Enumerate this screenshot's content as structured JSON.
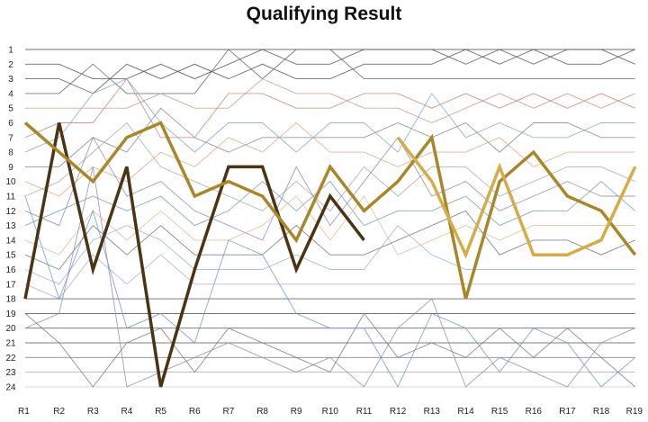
{
  "chart_data": {
    "type": "line",
    "title": "Qualifying Result",
    "xlabel": "",
    "ylabel": "",
    "x": [
      "R1",
      "R2",
      "R3",
      "R4",
      "R5",
      "R6",
      "R7",
      "R8",
      "R9",
      "R10",
      "R11",
      "R12",
      "R13",
      "R14",
      "R15",
      "R16",
      "R17",
      "R18",
      "R19"
    ],
    "y_ticks": [
      "1",
      "2",
      "3",
      "4",
      "5",
      "6",
      "7",
      "8",
      "9",
      "10",
      "11",
      "12",
      "13",
      "14",
      "15",
      "16",
      "17",
      "18",
      "19",
      "20",
      "21",
      "22",
      "23",
      "24"
    ],
    "ylim": [
      1,
      24
    ],
    "y_inverted": true,
    "grid": false,
    "legend": "none",
    "highlight_series": [
      {
        "color": "#4a3414",
        "width": 3.5,
        "values": [
          18,
          6,
          16,
          9,
          24,
          16,
          9,
          9,
          16,
          11,
          14,
          null,
          null,
          null,
          null,
          null,
          null,
          null,
          null
        ]
      },
      {
        "color": "#a8862a",
        "width": 3.5,
        "values": [
          6,
          8,
          10,
          7,
          6,
          11,
          10,
          11,
          14,
          9,
          12,
          10,
          7,
          18,
          10,
          8,
          11,
          12,
          15
        ]
      },
      {
        "color": "#d4ac48",
        "width": 3.5,
        "values": [
          null,
          null,
          null,
          null,
          null,
          null,
          null,
          null,
          null,
          null,
          null,
          7,
          10,
          15,
          9,
          15,
          15,
          14,
          9
        ]
      }
    ],
    "background_series": [
      {
        "color": "#555555",
        "values": [
          1,
          1,
          1,
          1,
          1,
          1,
          1,
          1,
          1,
          1,
          1,
          1,
          1,
          1,
          1,
          1,
          1,
          1,
          1
        ]
      },
      {
        "color": "#555555",
        "values": [
          2,
          2,
          3,
          3,
          2,
          3,
          2,
          1,
          2,
          2,
          1,
          1,
          1,
          2,
          1,
          2,
          1,
          1,
          2
        ]
      },
      {
        "color": "#555555",
        "values": [
          3,
          3,
          4,
          2,
          3,
          2,
          3,
          2,
          3,
          3,
          2,
          2,
          2,
          1,
          2,
          1,
          2,
          2,
          1
        ]
      },
      {
        "color": "#666666",
        "values": [
          4,
          4,
          2,
          4,
          4,
          4,
          1,
          3,
          1,
          1,
          3,
          3,
          3,
          3,
          3,
          3,
          3,
          3,
          3
        ]
      },
      {
        "color": "#cc9a8a",
        "values": [
          5,
          5,
          5,
          5,
          4,
          5,
          5,
          3,
          4,
          4,
          5,
          5,
          6,
          5,
          4,
          5,
          4,
          5,
          4
        ]
      },
      {
        "color": "#c88878",
        "values": [
          7,
          6,
          6,
          3,
          7,
          7,
          4,
          4,
          5,
          5,
          4,
          4,
          5,
          4,
          5,
          4,
          5,
          4,
          5
        ]
      },
      {
        "color": "#8aa8cc",
        "values": [
          8,
          7,
          4,
          3,
          6,
          8,
          6,
          6,
          8,
          6,
          6,
          8,
          4,
          7,
          6,
          7,
          7,
          6,
          6
        ]
      },
      {
        "color": "#888888",
        "values": [
          9,
          9,
          7,
          8,
          5,
          7,
          8,
          7,
          7,
          7,
          7,
          6,
          7,
          6,
          8,
          6,
          6,
          7,
          7
        ]
      },
      {
        "color": "#e0a888",
        "values": [
          10,
          11,
          9,
          10,
          8,
          9,
          7,
          8,
          6,
          8,
          8,
          9,
          8,
          8,
          7,
          9,
          8,
          8,
          8
        ]
      },
      {
        "color": "#aaaaaa",
        "values": [
          11,
          10,
          8,
          6,
          9,
          10,
          11,
          12,
          10,
          12,
          9,
          11,
          9,
          9,
          11,
          10,
          9,
          9,
          10
        ]
      },
      {
        "color": "#9a88aa",
        "values": [
          12,
          13,
          7,
          11,
          10,
          12,
          13,
          14,
          9,
          13,
          10,
          7,
          11,
          10,
          12,
          11,
          10,
          11,
          11
        ]
      },
      {
        "color": "#7a9aaa",
        "values": [
          13,
          12,
          11,
          12,
          11,
          13,
          12,
          10,
          12,
          10,
          13,
          12,
          12,
          11,
          13,
          12,
          12,
          10,
          12
        ]
      },
      {
        "color": "#e8b898",
        "values": [
          14,
          15,
          12,
          14,
          12,
          14,
          14,
          13,
          11,
          14,
          11,
          15,
          14,
          13,
          14,
          13,
          13,
          13,
          13
        ]
      },
      {
        "color": "#777777",
        "values": [
          15,
          16,
          13,
          15,
          13,
          15,
          15,
          15,
          13,
          15,
          15,
          14,
          13,
          12,
          15,
          14,
          14,
          15,
          14
        ]
      },
      {
        "color": "#9ab8cc",
        "values": [
          16,
          17,
          14,
          13,
          14,
          16,
          16,
          16,
          15,
          16,
          16,
          13,
          15,
          16,
          16,
          16,
          16,
          16,
          16
        ]
      },
      {
        "color": "#b8a8cc",
        "values": [
          17,
          18,
          15,
          17,
          15,
          17,
          17,
          17,
          17,
          17,
          17,
          17,
          17,
          17,
          17,
          17,
          17,
          17,
          17
        ]
      },
      {
        "color": "#555555",
        "values": [
          18,
          18,
          18,
          18,
          18,
          18,
          18,
          18,
          18,
          18,
          18,
          18,
          18,
          18,
          18,
          18,
          18,
          18,
          18
        ]
      },
      {
        "color": "#444444",
        "values": [
          19,
          19,
          19,
          19,
          19,
          19,
          19,
          19,
          19,
          19,
          19,
          19,
          19,
          19,
          19,
          19,
          19,
          19,
          19
        ]
      },
      {
        "color": "#555555",
        "values": [
          20,
          20,
          20,
          20,
          20,
          20,
          20,
          20,
          20,
          20,
          20,
          20,
          20,
          20,
          20,
          20,
          20,
          20,
          20
        ]
      },
      {
        "color": "#666666",
        "values": [
          21,
          21,
          21,
          21,
          21,
          21,
          21,
          21,
          21,
          21,
          21,
          21,
          21,
          21,
          21,
          21,
          21,
          21,
          21
        ]
      },
      {
        "color": "#777777",
        "values": [
          22,
          22,
          22,
          22,
          22,
          22,
          22,
          22,
          22,
          22,
          22,
          22,
          22,
          22,
          22,
          22,
          22,
          22,
          22
        ]
      },
      {
        "color": "#aaaaaa",
        "values": [
          23,
          23,
          23,
          23,
          23,
          23,
          23,
          23,
          23,
          23,
          23,
          23,
          23,
          23,
          23,
          23,
          23,
          23,
          23
        ]
      },
      {
        "color": "#cccccc",
        "values": [
          24,
          24,
          24,
          24,
          24,
          24,
          24,
          24,
          24,
          24,
          24,
          24,
          24,
          24,
          24,
          24,
          24,
          24,
          24
        ]
      },
      {
        "color": "#6a9acc",
        "values": [
          11,
          18,
          12,
          20,
          19,
          21,
          14,
          15,
          19,
          20,
          20,
          24,
          19,
          20,
          23,
          20,
          21,
          24,
          22
        ]
      },
      {
        "color": "#9a88bb",
        "values": [
          20,
          19,
          9,
          24,
          23,
          22,
          21,
          22,
          23,
          22,
          24,
          20,
          18,
          24,
          22,
          23,
          24,
          21,
          20
        ]
      },
      {
        "color": "#7a7a7a",
        "values": [
          19,
          21,
          24,
          21,
          20,
          23,
          20,
          21,
          22,
          23,
          19,
          22,
          21,
          22,
          20,
          22,
          20,
          22,
          24
        ]
      }
    ]
  }
}
